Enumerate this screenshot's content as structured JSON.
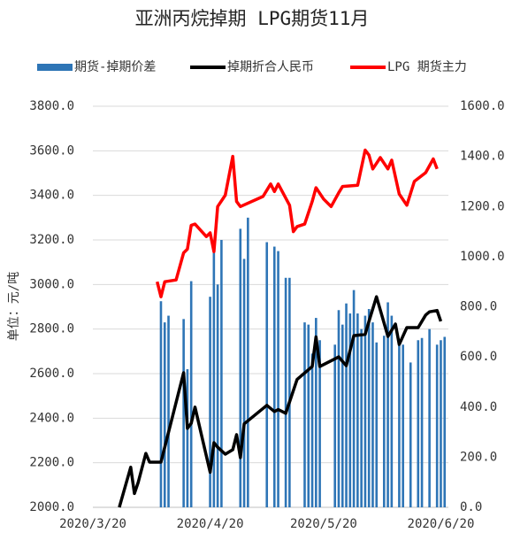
{
  "chart_data": {
    "type": "combo",
    "title": "亚洲丙烷掉期 LPG期货11月",
    "y_axis_label": "单位：元/吨",
    "xlim": [
      "2020/3/20",
      "2020/6/22"
    ],
    "xticks": [
      "2020/3/20",
      "2020/4/20",
      "2020/5/20",
      "2020/6/20"
    ],
    "ylim": [
      2000,
      3800
    ],
    "yticks": [
      {
        "value": 2000,
        "label": "2000.0"
      },
      {
        "value": 2200,
        "label": "2200.0"
      },
      {
        "value": 2400,
        "label": "2400.0"
      },
      {
        "value": 2600,
        "label": "2600.0"
      },
      {
        "value": 2800,
        "label": "2800.0"
      },
      {
        "value": 3000,
        "label": "3000.0"
      },
      {
        "value": 3200,
        "label": "3200.0"
      },
      {
        "value": 3400,
        "label": "3400.0"
      },
      {
        "value": 3600,
        "label": "3600.0"
      },
      {
        "value": 3800,
        "label": "3800.0"
      }
    ],
    "y2lim": [
      0,
      1600
    ],
    "y2ticks": [
      {
        "value": 0,
        "label": "0.0"
      },
      {
        "value": 200,
        "label": "200.0"
      },
      {
        "value": 400,
        "label": "400.0"
      },
      {
        "value": 600,
        "label": "600.0"
      },
      {
        "value": 800,
        "label": "800.0"
      },
      {
        "value": 1000,
        "label": "1000.0"
      },
      {
        "value": 1200,
        "label": "1200.0"
      },
      {
        "value": 1400,
        "label": "1400.0"
      },
      {
        "value": 1600,
        "label": "1600.0"
      }
    ],
    "grid": true,
    "legend": "top",
    "series": [
      {
        "name": "期货-掉期价差",
        "type": "bar",
        "color": "#2e75b6",
        "x": [
          "2020/4/7",
          "2020/4/8",
          "2020/4/9",
          "2020/4/13",
          "2020/4/14",
          "2020/4/15",
          "2020/4/20",
          "2020/4/21",
          "2020/4/22",
          "2020/4/23",
          "2020/4/28",
          "2020/4/29",
          "2020/4/30",
          "2020/5/5",
          "2020/5/7",
          "2020/5/8",
          "2020/5/10",
          "2020/5/11",
          "2020/5/15",
          "2020/5/16",
          "2020/5/17",
          "2020/5/18",
          "2020/5/19",
          "2020/5/23",
          "2020/5/24",
          "2020/5/25",
          "2020/5/26",
          "2020/5/27",
          "2020/5/28",
          "2020/5/29",
          "2020/5/30",
          "2020/5/31",
          "2020/6/1",
          "2020/6/2",
          "2020/6/3",
          "2020/6/5",
          "2020/6/6",
          "2020/6/7",
          "2020/6/9",
          "2020/6/10",
          "2020/6/12",
          "2020/6/14",
          "2020/6/15",
          "2020/6/17",
          "2020/6/19",
          "2020/6/20",
          "2020/6/21"
        ],
        "values": [
          2925,
          2830,
          2860,
          2845,
          2620,
          3015,
          2945,
          3160,
          3000,
          3200,
          3250,
          3115,
          3300,
          3190,
          3170,
          3150,
          3030,
          3030,
          2830,
          2820,
          2690,
          2850,
          2750,
          2730,
          2885,
          2820,
          2915,
          2870,
          2975,
          2870,
          2800,
          2860,
          2890,
          2830,
          2740,
          2770,
          2920,
          2860,
          2740,
          2730,
          2650,
          2750,
          2760,
          2800,
          2730,
          2750,
          2765
        ]
      },
      {
        "name": "掉期折合人民币",
        "type": "line",
        "axis": "y2",
        "color": "#000000",
        "x": [
          "2020/3/27",
          "2020/3/30",
          "2020/3/31",
          "2020/4/1",
          "2020/4/3",
          "2020/4/4",
          "2020/4/7",
          "2020/4/13",
          "2020/4/14",
          "2020/4/15",
          "2020/4/16",
          "2020/4/20",
          "2020/4/21",
          "2020/4/22",
          "2020/4/24",
          "2020/4/26",
          "2020/4/27",
          "2020/4/28",
          "2020/4/29",
          "2020/5/5",
          "2020/5/7",
          "2020/5/8",
          "2020/5/10",
          "2020/5/13",
          "2020/5/17",
          "2020/5/18",
          "2020/5/19",
          "2020/5/24",
          "2020/5/26",
          "2020/5/28",
          "2020/5/31",
          "2020/6/1",
          "2020/6/3",
          "2020/6/6",
          "2020/6/8",
          "2020/6/9",
          "2020/6/11",
          "2020/6/14",
          "2020/6/16",
          "2020/6/17",
          "2020/6/19",
          "2020/6/20"
        ],
        "values": [
          0,
          160,
          55,
          100,
          215,
          180,
          180,
          537,
          315,
          335,
          400,
          140,
          258,
          240,
          212,
          230,
          290,
          198,
          333,
          407,
          382,
          390,
          375,
          510,
          562,
          680,
          562,
          600,
          565,
          685,
          690,
          742,
          840,
          682,
          731,
          650,
          717,
          717,
          767,
          780,
          785,
          742
        ]
      },
      {
        "name": "LPG 期货主力",
        "type": "line",
        "axis": "y2",
        "color": "#ff0000",
        "x": [
          "2020/4/6",
          "2020/4/7",
          "2020/4/8",
          "2020/4/11",
          "2020/4/13",
          "2020/4/14",
          "2020/4/15",
          "2020/4/16",
          "2020/4/19",
          "2020/4/20",
          "2020/4/21",
          "2020/4/22",
          "2020/4/24",
          "2020/4/26",
          "2020/4/27",
          "2020/4/28",
          "2020/5/4",
          "2020/5/6",
          "2020/5/7",
          "2020/5/8",
          "2020/5/11",
          "2020/5/12",
          "2020/5/13",
          "2020/5/15",
          "2020/5/17",
          "2020/5/18",
          "2020/5/20",
          "2020/5/22",
          "2020/5/24",
          "2020/5/25",
          "2020/5/29",
          "2020/5/31",
          "2020/6/1",
          "2020/6/2",
          "2020/6/4",
          "2020/6/6",
          "2020/6/7",
          "2020/6/9",
          "2020/6/11",
          "2020/6/13",
          "2020/6/16",
          "2020/6/18",
          "2020/6/19"
        ],
        "values": [
          900,
          840,
          900,
          907,
          1015,
          1030,
          1125,
          1130,
          1080,
          1095,
          1020,
          1200,
          1245,
          1400,
          1220,
          1200,
          1240,
          1290,
          1260,
          1290,
          1205,
          1100,
          1120,
          1130,
          1220,
          1275,
          1230,
          1200,
          1255,
          1280,
          1285,
          1425,
          1405,
          1350,
          1395,
          1350,
          1385,
          1250,
          1205,
          1300,
          1335,
          1390,
          1350
        ]
      }
    ]
  }
}
